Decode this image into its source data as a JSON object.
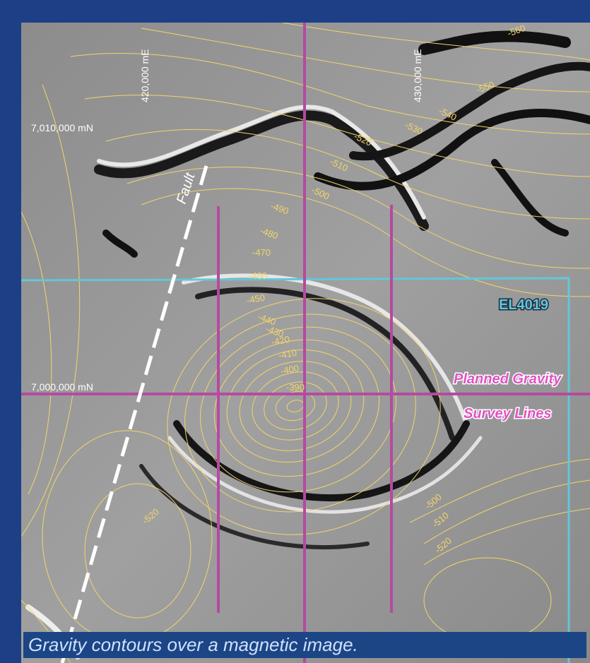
{
  "map": {
    "grid_labels": {
      "easting_1": "420,000 mE",
      "easting_2": "430,000 mE",
      "northing_1": "7,010,000 mN",
      "northing_2": "7,000,000 mN"
    },
    "annotations": {
      "fault": "Fault",
      "tenement": "EL4019",
      "survey_line_1": "Planned Gravity",
      "survey_line_2": "Survey Lines"
    },
    "contour_labels": [
      -560,
      -550,
      -540,
      -530,
      -520,
      -510,
      -500,
      -490,
      -480,
      -470,
      -460,
      -450,
      -440,
      -430,
      -420,
      -410,
      -400,
      -390,
      -500,
      -510,
      -520,
      -520,
      -490
    ],
    "caption": "Gravity contours over a magnetic image."
  }
}
